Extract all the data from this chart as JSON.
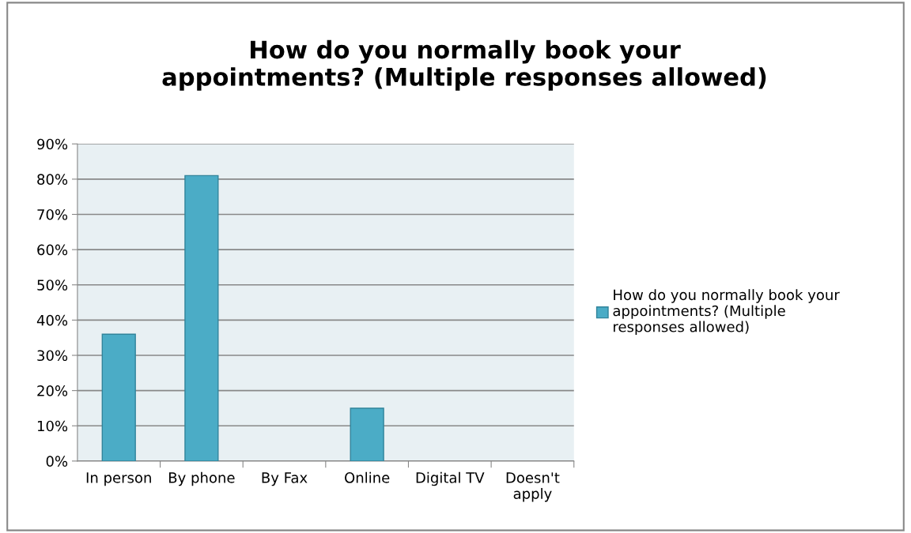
{
  "chart_data": {
    "type": "bar",
    "title": "How do you normally book your\nappointments? (Multiple responses allowed)",
    "categories": [
      "In person",
      "By phone",
      "By Fax",
      "Online",
      "Digital TV",
      "Doesn't\napply"
    ],
    "series": [
      {
        "name": "How do you normally book your\nappointments? (Multiple\nresponses allowed)",
        "color": "#4bacc6",
        "values": [
          36,
          81,
          0,
          15,
          0,
          0
        ]
      }
    ],
    "ylim": [
      0,
      90
    ],
    "yticks": [
      {
        "value": 0,
        "label": "0%"
      },
      {
        "value": 10,
        "label": "10%"
      },
      {
        "value": 20,
        "label": "20%"
      },
      {
        "value": 30,
        "label": "30%"
      },
      {
        "value": 40,
        "label": "40%"
      },
      {
        "value": 50,
        "label": "50%"
      },
      {
        "value": 60,
        "label": "60%"
      },
      {
        "value": 70,
        "label": "70%"
      },
      {
        "value": 80,
        "label": "80%"
      },
      {
        "value": 90,
        "label": "90%"
      }
    ],
    "grid": "y",
    "legend": "right"
  }
}
